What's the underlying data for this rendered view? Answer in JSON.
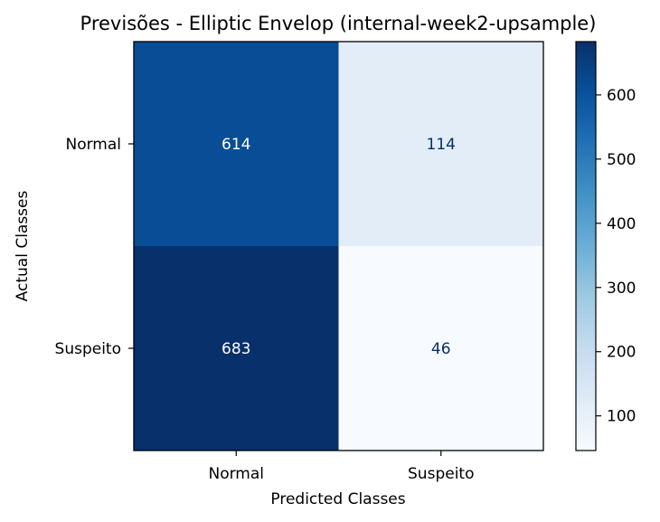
{
  "chart_data": {
    "type": "heatmap",
    "title": "Previsões - Elliptic Envelop (internal-week2-upsample)",
    "xlabel": "Predicted Classes",
    "ylabel": "Actual Classes",
    "x_categories": [
      "Normal",
      "Suspeito"
    ],
    "y_categories": [
      "Normal",
      "Suspeito"
    ],
    "matrix": [
      [
        614,
        114
      ],
      [
        683,
        46
      ]
    ],
    "colormap": "Blues",
    "colorbar": {
      "min": 46,
      "max": 683,
      "ticks": [
        100,
        200,
        300,
        400,
        500,
        600
      ],
      "tick_labels": [
        "100",
        "200",
        "300",
        "400",
        "500",
        "600"
      ]
    },
    "grid": false,
    "legend": "colorbar-right"
  }
}
